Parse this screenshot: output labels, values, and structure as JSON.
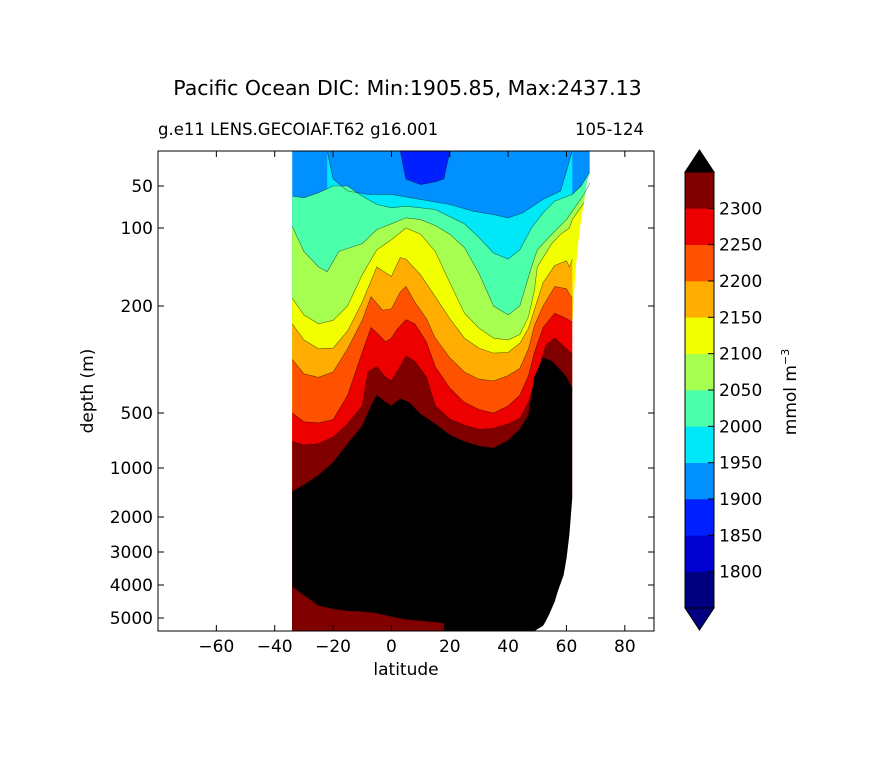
{
  "chart_data": {
    "type": "heatmap",
    "subtype": "filled-contour section",
    "title": "Pacific Ocean DIC: Min:1905.85, Max:2437.13",
    "subtitle_left": "g.e11 LENS.GECOIAF.T62 g16.001",
    "subtitle_right": "105-124",
    "xlabel": "latitude",
    "ylabel": "depth (m)",
    "xlim": [
      -80,
      90
    ],
    "ylim": [
      5500,
      0
    ],
    "yscale": "nonlinear (stretched upper ocean)",
    "x_ticks": [
      -60,
      -40,
      -20,
      0,
      20,
      40,
      60,
      80
    ],
    "x_tick_labels": [
      "−60",
      "−40",
      "−20",
      "0",
      "20",
      "40",
      "60",
      "80"
    ],
    "y_ticks": [
      50,
      100,
      200,
      500,
      1000,
      2000,
      3000,
      4000,
      5000
    ],
    "y_tick_labels": [
      "50",
      "100",
      "200",
      "500",
      "1000",
      "2000",
      "3000",
      "4000",
      "5000"
    ],
    "colorbar": {
      "label": "mmol m",
      "label_sup": "−3",
      "extend": "both",
      "levels": [
        1750,
        1800,
        1850,
        1900,
        1950,
        2000,
        2050,
        2100,
        2150,
        2200,
        2250,
        2300,
        2350
      ],
      "tick_values": [
        1800,
        1850,
        1900,
        1950,
        2000,
        2050,
        2100,
        2150,
        2200,
        2250,
        2300
      ],
      "tick_labels": [
        "1800",
        "1850",
        "1900",
        "1950",
        "2000",
        "2050",
        "2100",
        "2150",
        "2200",
        "2250",
        "2300"
      ],
      "colors": [
        "#00007f",
        "#0000d0",
        "#0020ff",
        "#0090ff",
        "#00e8f8",
        "#4cffaa",
        "#a6ff50",
        "#f2ff00",
        "#ffad00",
        "#ff5200",
        "#ec0000",
        "#800000"
      ],
      "over_color": "#000000",
      "under_color": "#000080"
    },
    "ocean_lat_range": [
      -34,
      68
    ],
    "contour_boundaries": [
      {
        "level": 1900,
        "points": [
          [
            3,
            0
          ],
          [
            5,
            40
          ],
          [
            10,
            48
          ],
          [
            15,
            44
          ],
          [
            18,
            40
          ],
          [
            20,
            0
          ]
        ]
      },
      {
        "level": 1950,
        "points": [
          [
            -22,
            0
          ],
          [
            -20,
            40
          ],
          [
            -15,
            56
          ],
          [
            -8,
            60
          ],
          [
            0,
            60
          ],
          [
            10,
            66
          ],
          [
            20,
            72
          ],
          [
            28,
            80
          ],
          [
            35,
            84
          ],
          [
            40,
            88
          ],
          [
            45,
            82
          ],
          [
            52,
            66
          ],
          [
            58,
            56
          ],
          [
            62,
            0
          ]
        ]
      },
      {
        "level": 2000,
        "points": [
          [
            -34,
            62
          ],
          [
            -30,
            64
          ],
          [
            -25,
            58
          ],
          [
            -20,
            50
          ],
          [
            -15,
            50
          ],
          [
            -10,
            62
          ],
          [
            -5,
            72
          ],
          [
            0,
            76
          ],
          [
            5,
            74
          ],
          [
            15,
            78
          ],
          [
            25,
            95
          ],
          [
            30,
            112
          ],
          [
            35,
            132
          ],
          [
            40,
            140
          ],
          [
            44,
            128
          ],
          [
            48,
            100
          ],
          [
            52,
            82
          ],
          [
            56,
            68
          ],
          [
            62,
            60
          ],
          [
            65,
            50
          ],
          [
            68,
            30
          ]
        ]
      },
      {
        "level": 2050,
        "points": [
          [
            -34,
            98
          ],
          [
            -30,
            130
          ],
          [
            -25,
            150
          ],
          [
            -22,
            156
          ],
          [
            -18,
            130
          ],
          [
            -10,
            120
          ],
          [
            -5,
            102
          ],
          [
            0,
            95
          ],
          [
            5,
            88
          ],
          [
            10,
            90
          ],
          [
            15,
            97
          ],
          [
            20,
            108
          ],
          [
            25,
            125
          ],
          [
            30,
            158
          ],
          [
            35,
            200
          ],
          [
            40,
            225
          ],
          [
            44,
            200
          ],
          [
            48,
            150
          ],
          [
            50,
            128
          ],
          [
            55,
            108
          ],
          [
            60,
            90
          ],
          [
            62,
            80
          ],
          [
            66,
            60
          ],
          [
            68,
            46
          ]
        ]
      },
      {
        "level": 2100,
        "points": [
          [
            -34,
            190
          ],
          [
            -30,
            225
          ],
          [
            -25,
            250
          ],
          [
            -20,
            240
          ],
          [
            -15,
            200
          ],
          [
            -10,
            160
          ],
          [
            -5,
            128
          ],
          [
            0,
            115
          ],
          [
            5,
            100
          ],
          [
            10,
            108
          ],
          [
            15,
            130
          ],
          [
            20,
            170
          ],
          [
            25,
            220
          ],
          [
            30,
            262
          ],
          [
            35,
            290
          ],
          [
            40,
            295
          ],
          [
            44,
            280
          ],
          [
            47,
            230
          ],
          [
            49,
            180
          ],
          [
            50,
            150
          ],
          [
            55,
            120
          ],
          [
            58,
            108
          ],
          [
            61,
            100
          ],
          [
            62,
            90
          ],
          [
            64,
            80
          ],
          [
            66,
            70
          ]
        ]
      },
      {
        "level": 2150,
        "points": [
          [
            -34,
            250
          ],
          [
            -30,
            295
          ],
          [
            -25,
            320
          ],
          [
            -20,
            318
          ],
          [
            -15,
            270
          ],
          [
            -10,
            195
          ],
          [
            -5,
            150
          ],
          [
            0,
            162
          ],
          [
            3,
            138
          ],
          [
            5,
            140
          ],
          [
            10,
            160
          ],
          [
            15,
            188
          ],
          [
            20,
            235
          ],
          [
            25,
            290
          ],
          [
            30,
            318
          ],
          [
            35,
            332
          ],
          [
            40,
            330
          ],
          [
            44,
            305
          ],
          [
            47,
            262
          ],
          [
            49,
            210
          ],
          [
            52,
            170
          ],
          [
            56,
            148
          ],
          [
            60,
            142
          ],
          [
            61,
            150
          ],
          [
            62,
            140
          ]
        ]
      },
      {
        "level": 2200,
        "points": [
          [
            -34,
            350
          ],
          [
            -30,
            390
          ],
          [
            -25,
            400
          ],
          [
            -20,
            385
          ],
          [
            -15,
            320
          ],
          [
            -10,
            240
          ],
          [
            -7,
            188
          ],
          [
            -3,
            212
          ],
          [
            0,
            208
          ],
          [
            3,
            182
          ],
          [
            5,
            175
          ],
          [
            8,
            195
          ],
          [
            12,
            235
          ],
          [
            15,
            290
          ],
          [
            20,
            345
          ],
          [
            25,
            385
          ],
          [
            30,
            405
          ],
          [
            35,
            410
          ],
          [
            40,
            395
          ],
          [
            44,
            375
          ],
          [
            47,
            320
          ],
          [
            49,
            255
          ],
          [
            52,
            200
          ],
          [
            56,
            175
          ],
          [
            60,
            178
          ],
          [
            61,
            185
          ],
          [
            62,
            190
          ]
        ]
      },
      {
        "level": 2250,
        "points": [
          [
            -34,
            500
          ],
          [
            -30,
            580
          ],
          [
            -25,
            590
          ],
          [
            -20,
            560
          ],
          [
            -15,
            450
          ],
          [
            -10,
            330
          ],
          [
            -7,
            260
          ],
          [
            -5,
            275
          ],
          [
            -2,
            300
          ],
          [
            0,
            290
          ],
          [
            2,
            265
          ],
          [
            5,
            238
          ],
          [
            8,
            250
          ],
          [
            12,
            300
          ],
          [
            15,
            370
          ],
          [
            20,
            430
          ],
          [
            25,
            470
          ],
          [
            30,
            490
          ],
          [
            35,
            500
          ],
          [
            40,
            480
          ],
          [
            44,
            450
          ],
          [
            47,
            395
          ],
          [
            49,
            330
          ],
          [
            52,
            260
          ],
          [
            56,
            220
          ],
          [
            60,
            235
          ],
          [
            62,
            245
          ]
        ]
      },
      {
        "level": 2300,
        "points": [
          [
            -34,
            760
          ],
          [
            -30,
            790
          ],
          [
            -25,
            780
          ],
          [
            -20,
            720
          ],
          [
            -15,
            600
          ],
          [
            -10,
            480
          ],
          [
            -8,
            385
          ],
          [
            -5,
            370
          ],
          [
            -2,
            400
          ],
          [
            0,
            410
          ],
          [
            3,
            370
          ],
          [
            5,
            340
          ],
          [
            8,
            355
          ],
          [
            12,
            400
          ],
          [
            15,
            480
          ],
          [
            20,
            555
          ],
          [
            25,
            610
          ],
          [
            30,
            650
          ],
          [
            35,
            640
          ],
          [
            40,
            600
          ],
          [
            44,
            550
          ],
          [
            47,
            470
          ],
          [
            50,
            390
          ],
          [
            53,
            310
          ],
          [
            56,
            290
          ],
          [
            60,
            320
          ],
          [
            62,
            335
          ]
        ]
      },
      {
        "level": 2350,
        "points": [
          [
            -34,
            1480
          ],
          [
            -30,
            1350
          ],
          [
            -25,
            1150
          ],
          [
            -20,
            950
          ],
          [
            -15,
            780
          ],
          [
            -10,
            620
          ],
          [
            -7,
            480
          ],
          [
            -5,
            450
          ],
          [
            -2,
            470
          ],
          [
            0,
            480
          ],
          [
            3,
            460
          ],
          [
            6,
            470
          ],
          [
            10,
            510
          ],
          [
            15,
            600
          ],
          [
            20,
            700
          ],
          [
            25,
            760
          ],
          [
            30,
            800
          ],
          [
            35,
            820
          ],
          [
            40,
            750
          ],
          [
            44,
            650
          ],
          [
            47,
            520
          ],
          [
            49,
            400
          ],
          [
            52,
            345
          ],
          [
            55,
            355
          ],
          [
            58,
            380
          ],
          [
            60,
            400
          ],
          [
            62,
            430
          ]
        ]
      }
    ],
    "deep_water_top": {
      "level": 2350,
      "points": [
        [
          -34,
          4050
        ],
        [
          -30,
          4300
        ],
        [
          -25,
          4620
        ],
        [
          -20,
          4720
        ],
        [
          -15,
          4780
        ],
        [
          -10,
          4800
        ],
        [
          -5,
          4850
        ],
        [
          0,
          4950
        ],
        [
          5,
          5050
        ],
        [
          10,
          5100
        ],
        [
          15,
          5150
        ],
        [
          18,
          5200
        ]
      ]
    },
    "seafloor": [
      [
        -34,
        5500
      ],
      [
        49,
        5500
      ],
      [
        52,
        5300
      ],
      [
        53,
        5100
      ],
      [
        54,
        4900
      ],
      [
        55,
        4700
      ],
      [
        56,
        4500
      ],
      [
        57,
        4200
      ],
      [
        59,
        3700
      ],
      [
        60,
        3200
      ],
      [
        61,
        2500
      ],
      [
        62,
        1600
      ],
      [
        62,
        600
      ],
      [
        62,
        250
      ],
      [
        63,
        160
      ],
      [
        64,
        120
      ],
      [
        65,
        90
      ],
      [
        66,
        70
      ],
      [
        67,
        45
      ],
      [
        68,
        30
      ],
      [
        68,
        0
      ]
    ]
  }
}
